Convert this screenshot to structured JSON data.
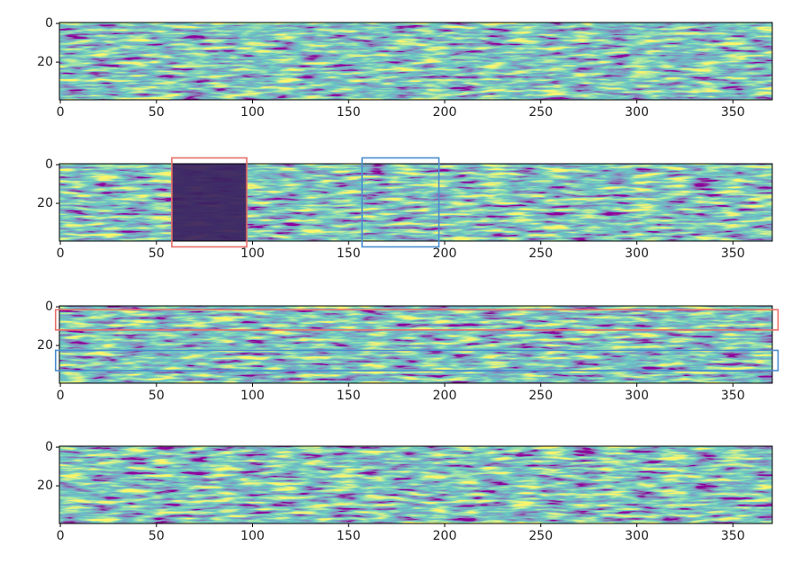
{
  "chart_data": [
    {
      "type": "heatmap",
      "xlim": [
        -0.5,
        370.5
      ],
      "ylim": [
        39.5,
        -0.5
      ],
      "xticks": [
        0,
        50,
        100,
        150,
        200,
        250,
        300,
        350
      ],
      "yticks": [
        0,
        20
      ],
      "masks": [],
      "boxes": []
    },
    {
      "type": "heatmap",
      "xlim": [
        -0.5,
        370.5
      ],
      "ylim": [
        39.5,
        -0.5
      ],
      "xticks": [
        0,
        50,
        100,
        150,
        200,
        250,
        300,
        350
      ],
      "yticks": [
        0,
        20
      ],
      "masks": [
        {
          "x": [
            58,
            97
          ]
        }
      ],
      "boxes": [
        {
          "x": [
            58,
            97
          ],
          "y": [
            -3.5,
            42.5
          ],
          "color": "#e8706a"
        },
        {
          "x": [
            157,
            197
          ],
          "y": [
            -3.5,
            42.5
          ],
          "color": "#4a8ed0"
        }
      ]
    },
    {
      "type": "heatmap",
      "xlim": [
        -0.5,
        370.5
      ],
      "ylim": [
        39.5,
        -0.5
      ],
      "xticks": [
        0,
        50,
        100,
        150,
        200,
        250,
        300,
        350
      ],
      "yticks": [
        0,
        20
      ],
      "masks": [],
      "boxes": [
        {
          "x": [
            -2.5,
            373.5
          ],
          "y": [
            1.5,
            12
          ],
          "color": "#e8706a"
        },
        {
          "x": [
            -2.5,
            373.5
          ],
          "y": [
            22.5,
            33
          ],
          "color": "#4a8ed0"
        }
      ]
    },
    {
      "type": "heatmap",
      "xlim": [
        -0.5,
        370.5
      ],
      "ylim": [
        39.5,
        -0.5
      ],
      "xticks": [
        0,
        50,
        100,
        150,
        200,
        250,
        300,
        350
      ],
      "yticks": [
        0,
        20
      ],
      "masks": [],
      "boxes": []
    }
  ]
}
